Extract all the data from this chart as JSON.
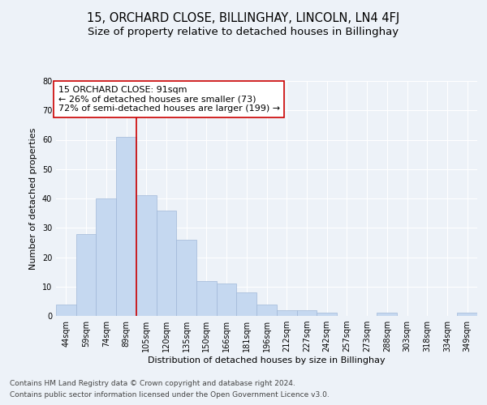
{
  "title": "15, ORCHARD CLOSE, BILLINGHAY, LINCOLN, LN4 4FJ",
  "subtitle": "Size of property relative to detached houses in Billinghay",
  "xlabel": "Distribution of detached houses by size in Billinghay",
  "ylabel": "Number of detached properties",
  "categories": [
    "44sqm",
    "59sqm",
    "74sqm",
    "89sqm",
    "105sqm",
    "120sqm",
    "135sqm",
    "150sqm",
    "166sqm",
    "181sqm",
    "196sqm",
    "212sqm",
    "227sqm",
    "242sqm",
    "257sqm",
    "273sqm",
    "288sqm",
    "303sqm",
    "318sqm",
    "334sqm",
    "349sqm"
  ],
  "values": [
    4,
    28,
    40,
    61,
    41,
    36,
    26,
    12,
    11,
    8,
    4,
    2,
    2,
    1,
    0,
    0,
    1,
    0,
    0,
    0,
    1
  ],
  "bar_color": "#c5d8f0",
  "bar_edge_color": "#a0b8d8",
  "vline_x": 3.5,
  "vline_color": "#cc0000",
  "annotation_text": "15 ORCHARD CLOSE: 91sqm\n← 26% of detached houses are smaller (73)\n72% of semi-detached houses are larger (199) →",
  "annotation_box_color": "#ffffff",
  "annotation_box_edge": "#cc0000",
  "ylim": [
    0,
    80
  ],
  "yticks": [
    0,
    10,
    20,
    30,
    40,
    50,
    60,
    70,
    80
  ],
  "bg_color": "#edf2f8",
  "plot_bg_color": "#edf2f8",
  "grid_color": "#ffffff",
  "footer_line1": "Contains HM Land Registry data © Crown copyright and database right 2024.",
  "footer_line2": "Contains public sector information licensed under the Open Government Licence v3.0.",
  "title_fontsize": 10.5,
  "subtitle_fontsize": 9.5,
  "axis_label_fontsize": 8,
  "tick_fontsize": 7,
  "annotation_fontsize": 8,
  "footer_fontsize": 6.5
}
